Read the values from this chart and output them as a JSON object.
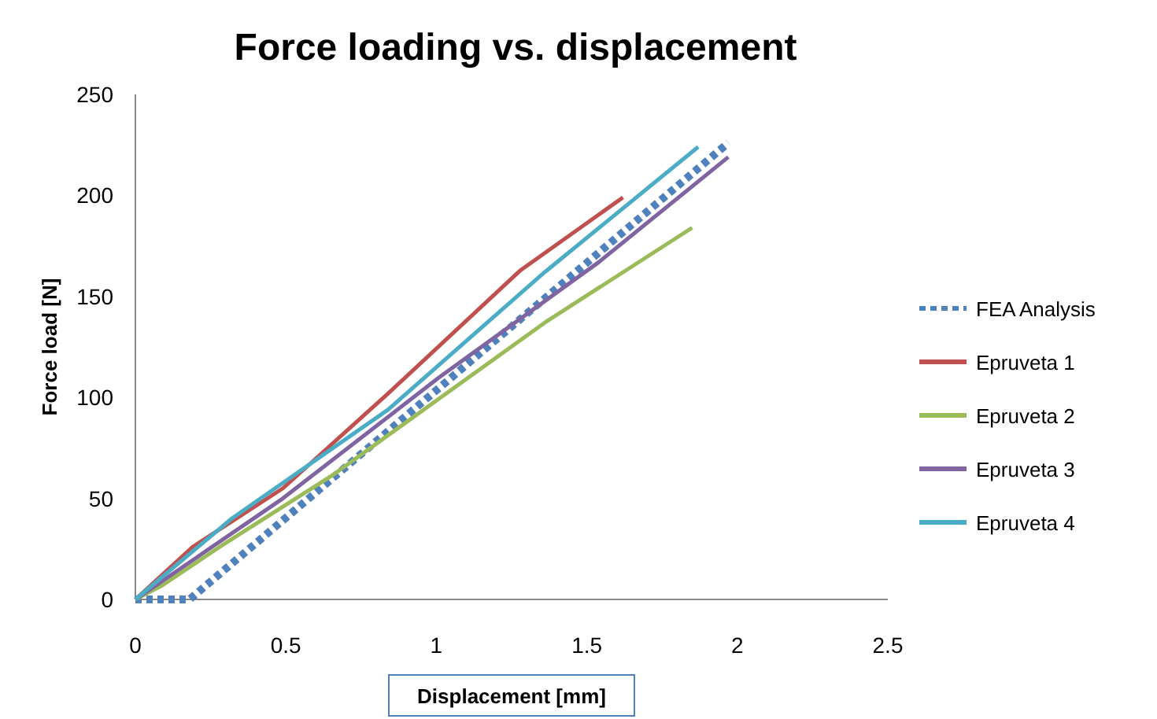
{
  "chart_data": {
    "type": "line",
    "title": "Force loading vs. displacement",
    "xlabel": "Displacement [mm]",
    "ylabel": "Force load [N]",
    "xlim": [
      0,
      2.5
    ],
    "xticks": [
      0,
      0.5,
      1,
      1.5,
      2,
      2.5
    ],
    "ylim": [
      0,
      250
    ],
    "yticks": [
      0,
      50,
      100,
      150,
      200,
      250
    ],
    "grid": false,
    "legend": "right",
    "marker": "none",
    "series": [
      {
        "name": "FEA Analysis",
        "color": "#4f81bd",
        "line_style": "dotted",
        "x": [
          0,
          0.18,
          1.97
        ],
        "values": [
          0,
          0,
          226
        ]
      },
      {
        "name": "Epruveta 1",
        "color": "#c0504d",
        "x": [
          0,
          0.19,
          0.49,
          0.84,
          1.28,
          1.62
        ],
        "values": [
          0,
          26,
          55,
          102,
          163,
          199
        ]
      },
      {
        "name": "Epruveta 2",
        "color": "#9bbb59",
        "x": [
          0,
          0.09,
          0.28,
          0.66,
          1.36,
          1.85
        ],
        "values": [
          0,
          7,
          26,
          62,
          137,
          184
        ]
      },
      {
        "name": "Epruveta 3",
        "color": "#8064a2",
        "x": [
          0,
          0.49,
          1.01,
          1.54,
          1.97
        ],
        "values": [
          0,
          50,
          110,
          167,
          219
        ]
      },
      {
        "name": "Epruveta 4",
        "color": "#4bacc6",
        "x": [
          0,
          0.32,
          0.84,
          1.36,
          1.87
        ],
        "values": [
          0,
          40,
          94,
          162,
          224
        ]
      }
    ]
  }
}
